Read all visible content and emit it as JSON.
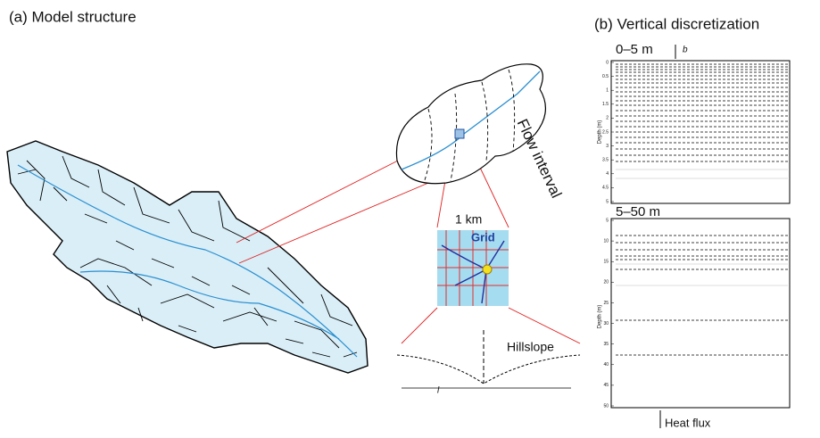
{
  "panel_a": {
    "title": "(a) Model structure",
    "flow_label": "Flow interval",
    "grid_size": "1 km",
    "grid_label": "Grid",
    "hillslope_label": "Hillslope",
    "length_symbol": "l"
  },
  "panel_b": {
    "title": "(b) Vertical discretization",
    "top": {
      "label": "0–5 m",
      "symbol": "b",
      "axis_label": "Depth (m)",
      "ticks": [
        0,
        0.5,
        1,
        1.5,
        2,
        2.5,
        3,
        3.5,
        4,
        4.5,
        5
      ]
    },
    "bottom": {
      "label": "5–50 m",
      "axis_label": "Depth (m)",
      "ticks": [
        5,
        10,
        15,
        20,
        25,
        30,
        35,
        40,
        45,
        50
      ]
    },
    "heat_flux": "Heat flux"
  }
}
